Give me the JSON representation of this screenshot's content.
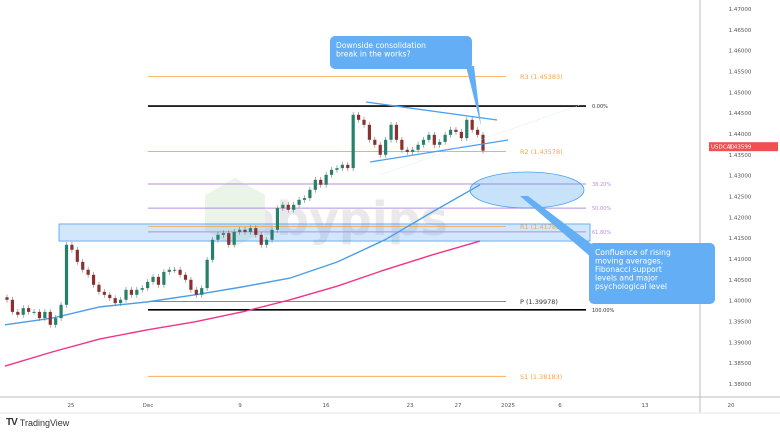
{
  "symbol": "USDCAD",
  "last_price": "1.43599",
  "colors": {
    "up": "#26806a",
    "down": "#8c2f2f",
    "ma_fast": "#4a9ee8",
    "ma_slow": "#f0338a",
    "pivot": "#f5a445",
    "fib": "#b48fde",
    "zone": "#4aa0f0",
    "callout": "#64aef5",
    "price_tag": "#f05050"
  },
  "watermark": "babypips",
  "branding": "TradingView",
  "chart_data": {
    "type": "candlestick",
    "timeframe_labels": [
      "25",
      "Dec",
      "9",
      "16",
      "23",
      "27",
      "2025",
      "6",
      "13",
      "20"
    ],
    "y_ticks": [
      "1.47000",
      "1.46500",
      "1.46000",
      "1.45500",
      "1.45000",
      "1.44500",
      "1.44000",
      "1.43500",
      "1.43000",
      "1.42500",
      "1.42000",
      "1.41500",
      "1.41000",
      "1.40500",
      "1.40000",
      "1.39500",
      "1.39000",
      "1.38500",
      "1.38000"
    ],
    "ylim": [
      1.3775,
      1.4725
    ],
    "closes": [
      1.4002,
      1.3973,
      1.3966,
      1.3982,
      1.3973,
      1.3973,
      1.3958,
      1.3973,
      1.3942,
      1.3958,
      1.399,
      1.4134,
      1.4122,
      1.4093,
      1.4074,
      1.4062,
      1.4038,
      1.4021,
      1.4014,
      1.4006,
      1.3994,
      1.4002,
      1.4026,
      1.4014,
      1.4026,
      1.403,
      1.4045,
      1.4057,
      1.4038,
      1.4069,
      1.4074,
      1.4074,
      1.4062,
      1.405,
      1.4026,
      1.4014,
      1.403,
      1.4098,
      1.4146,
      1.4158,
      1.4162,
      1.4134,
      1.4165,
      1.417,
      1.4165,
      1.4174,
      1.4158,
      1.4134,
      1.4146,
      1.417,
      1.4222,
      1.423,
      1.4218,
      1.423,
      1.4242,
      1.4246,
      1.4266,
      1.429,
      1.4278,
      1.4302,
      1.4314,
      1.4318,
      1.4326,
      1.4318,
      1.4446,
      1.4434,
      1.4422,
      1.4386,
      1.4374,
      1.435,
      1.4386,
      1.4422,
      1.4386,
      1.4362,
      1.4357,
      1.4362,
      1.4374,
      1.4386,
      1.4398,
      1.4374,
      1.4381,
      1.4398,
      1.441,
      1.4405,
      1.439,
      1.4434,
      1.441,
      1.4398,
      1.43599
    ],
    "moving_averages": [
      {
        "values": [
          1.3942,
          1.3958,
          1.3985,
          1.3997,
          1.4014,
          1.4033,
          1.4054,
          1.4093,
          1.4146,
          1.4213,
          1.4278
        ]
      },
      {
        "values": [
          1.3843,
          1.3877,
          1.3908,
          1.393,
          1.3949,
          1.3973,
          1.4002,
          1.4035,
          1.4074,
          1.411,
          1.4143
        ]
      }
    ],
    "pivot_levels": [
      {
        "name": "R3",
        "value": 1.45383,
        "label": "R3 (1.45383)"
      },
      {
        "name": "R2",
        "value": 1.43578,
        "label": "R2 (1.43578)"
      },
      {
        "name": "R1",
        "value": 1.41783,
        "label": "R1 (1.41783)"
      },
      {
        "name": "P",
        "value": 1.39978,
        "label": "P (1.39978)"
      },
      {
        "name": "S1",
        "value": 1.38183,
        "label": "S1 (1.38183)"
      }
    ],
    "fib_levels": [
      {
        "label": "0.00%",
        "value": 1.4467
      },
      {
        "label": "38.20%",
        "value": 1.428
      },
      {
        "label": "50.00%",
        "value": 1.4222
      },
      {
        "label": "61.80%",
        "value": 1.4165
      },
      {
        "label": "100.00%",
        "value": 1.3978
      }
    ],
    "support_zone": [
      1.4143,
      1.4184
    ],
    "annotations": [
      {
        "text": "Downside consolidation break in the works?"
      },
      {
        "text": "Confluence of rising moving averages, Fibonacci support levels and major psychological level"
      }
    ]
  }
}
